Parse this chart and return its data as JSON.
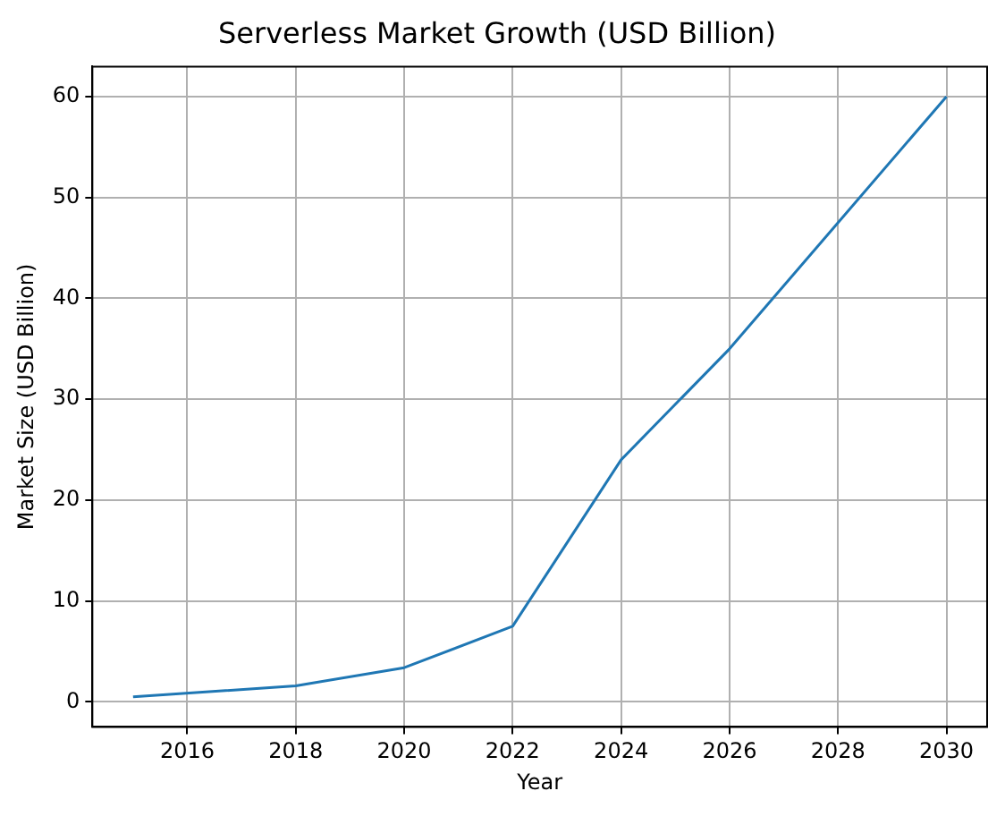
{
  "chart_data": {
    "type": "line",
    "title": "Serverless Market Growth (USD Billion)",
    "xlabel": "Year",
    "ylabel": "Market Size (USD Billion)",
    "x": [
      2015,
      2018,
      2020,
      2022,
      2024,
      2026,
      2030
    ],
    "series": [
      {
        "color": "#1f77b4",
        "values": [
          0.5,
          1.6,
          3.4,
          7.5,
          24,
          35,
          60
        ]
      }
    ],
    "xlim": [
      2014.25,
      2030.75
    ],
    "xticks": [
      2016,
      2018,
      2020,
      2022,
      2024,
      2026,
      2028,
      2030
    ],
    "ylim": [
      -2.475,
      62.975
    ],
    "yticks": [
      0,
      10,
      20,
      30,
      40,
      50,
      60
    ],
    "grid": true,
    "legend": false,
    "marker": "none",
    "line_style": "solid"
  }
}
